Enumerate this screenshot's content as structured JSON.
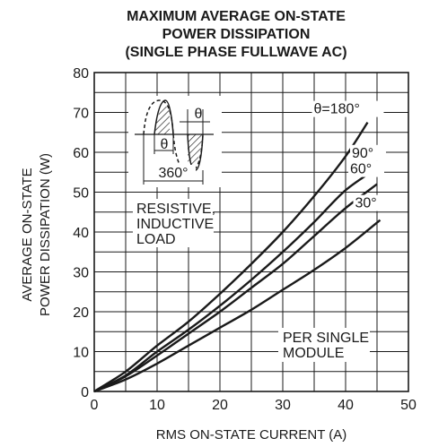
{
  "chart_data": {
    "type": "line",
    "title_lines": [
      "MAXIMUM AVERAGE ON-STATE",
      "POWER DISSIPATION",
      "(SINGLE PHASE FULLWAVE AC)"
    ],
    "xlabel": "RMS ON-STATE CURRENT (A)",
    "ylabel_lines": [
      "AVERAGE ON-STATE",
      "POWER DISSIPATION (W)"
    ],
    "xlim": [
      0,
      50
    ],
    "ylim": [
      0,
      80
    ],
    "xticks": [
      0,
      10,
      20,
      30,
      40,
      50
    ],
    "yticks": [
      0,
      10,
      20,
      30,
      40,
      50,
      60,
      70,
      80
    ],
    "x_minor_step": 5,
    "y_minor_step": 5,
    "grid": true,
    "series": [
      {
        "name": "θ=180°",
        "x": [
          0,
          5,
          10,
          15,
          20,
          25,
          30,
          35,
          40,
          43.5
        ],
        "y": [
          0,
          5,
          11.5,
          17.5,
          24.5,
          32,
          40,
          49,
          59,
          67.5
        ]
      },
      {
        "name": "90°",
        "x": [
          0,
          5,
          10,
          15,
          20,
          25,
          30,
          35,
          40,
          45
        ],
        "y": [
          0,
          4,
          10,
          15.5,
          21.5,
          28,
          35,
          42.5,
          50.5,
          56
        ]
      },
      {
        "name": "60°",
        "x": [
          0,
          5,
          10,
          15,
          20,
          25,
          30,
          35,
          40,
          45
        ],
        "y": [
          0,
          3.8,
          9,
          14.5,
          20,
          26,
          32,
          39,
          46,
          52
        ]
      },
      {
        "name": "30°",
        "x": [
          0,
          5,
          10,
          15,
          20,
          25,
          30,
          35,
          40,
          45.5
        ],
        "y": [
          0,
          3,
          7,
          11.5,
          16,
          20.5,
          25.5,
          30.5,
          36,
          43
        ]
      }
    ],
    "annotations": {
      "load": [
        "RESISTIVE,",
        "INDUCTIVE",
        "LOAD"
      ],
      "module": [
        "PER SINGLE",
        "MODULE"
      ],
      "waveform_theta": "θ",
      "waveform_period": "360°"
    }
  }
}
